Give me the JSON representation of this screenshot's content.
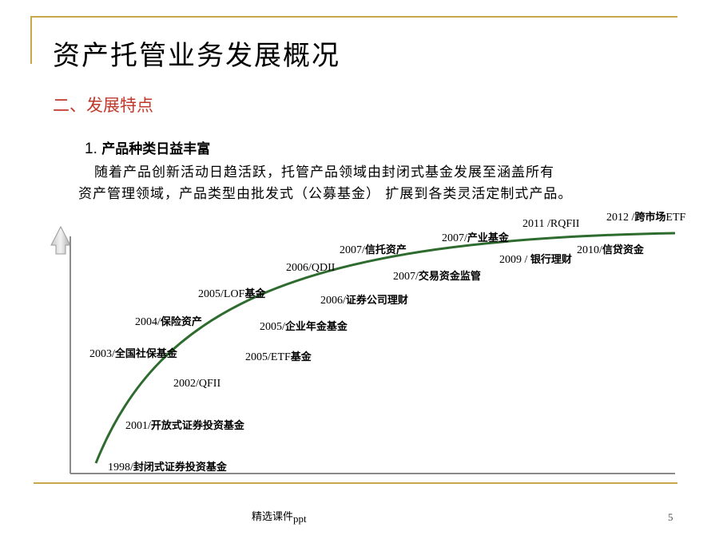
{
  "slide": {
    "title": "资产托管业务发展概况",
    "subtitle": "二、发展特点",
    "point_number": "1.",
    "point_title": "产品种类日益丰富",
    "body_line1": "随着产品创新活动日趋活跃，托管产品领域由封闭式基金发展至涵盖所有",
    "body_line2": "资产管理领域，产品类型由批发式（公募基金） 扩展到各类灵活定制式产品。"
  },
  "timeline": {
    "milestones": [
      {
        "year": "1998/",
        "label": "封闭式证券投资基金"
      },
      {
        "year": "2001/",
        "label": "开放式证券投资基金"
      },
      {
        "year": "2002/QFII",
        "label": ""
      },
      {
        "year": "2003/",
        "label": "全国社保基金"
      },
      {
        "year": "2004/",
        "label": "保险资产"
      },
      {
        "year": "2005/LOF",
        "label": "基金"
      },
      {
        "year": "2005/ETF",
        "label": "基金"
      },
      {
        "year": "2005/",
        "label": "企业年金基金"
      },
      {
        "year": "2006/",
        "label": "证券公司理财"
      },
      {
        "year": "2006/QDII",
        "label": ""
      },
      {
        "year": "2007/",
        "label": "信托资产"
      },
      {
        "year": "2007/",
        "label": "交易资金监管"
      },
      {
        "year": "2007/",
        "label": "产业基金"
      },
      {
        "year": "2009 / ",
        "label": "银行理财"
      },
      {
        "year": "2011 /RQFII",
        "label": ""
      },
      {
        "year": "2010/",
        "label": "信贷资金"
      },
      {
        "year": "2012 /",
        "label": "跨市场",
        "suffix": "ETF"
      }
    ],
    "curve_color": "#2e6b2e",
    "axis_color": "#8a8a8a"
  },
  "footer": {
    "text": "精选课件",
    "text_suffix": "ppt",
    "page_number": "5"
  }
}
